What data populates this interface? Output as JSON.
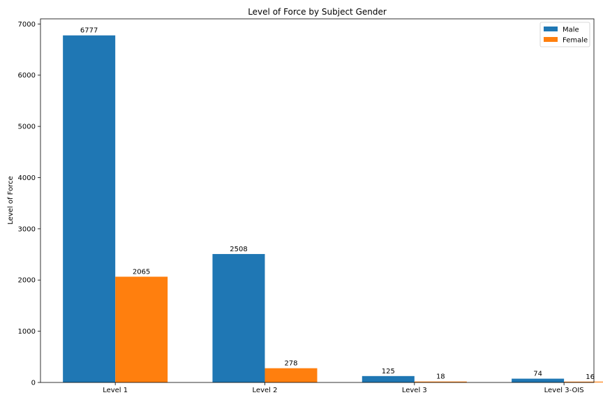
{
  "chart_data": {
    "type": "bar",
    "title": "Level of Force by Subject Gender",
    "xlabel": "",
    "ylabel": "Level of Force",
    "categories": [
      "Level 1",
      "Level 2",
      "Level 3",
      "Level 3-OIS"
    ],
    "series": [
      {
        "name": "Male",
        "values": [
          6777,
          2508,
          125,
          74
        ],
        "color": "#1f77b4"
      },
      {
        "name": "Female",
        "values": [
          2065,
          278,
          18,
          16
        ],
        "color": "#ff7f0e"
      }
    ],
    "ylim": [
      0,
      7100
    ],
    "yticks": [
      0,
      1000,
      2000,
      3000,
      4000,
      5000,
      6000,
      7000
    ],
    "grid": false,
    "legend_position": "top-right"
  }
}
